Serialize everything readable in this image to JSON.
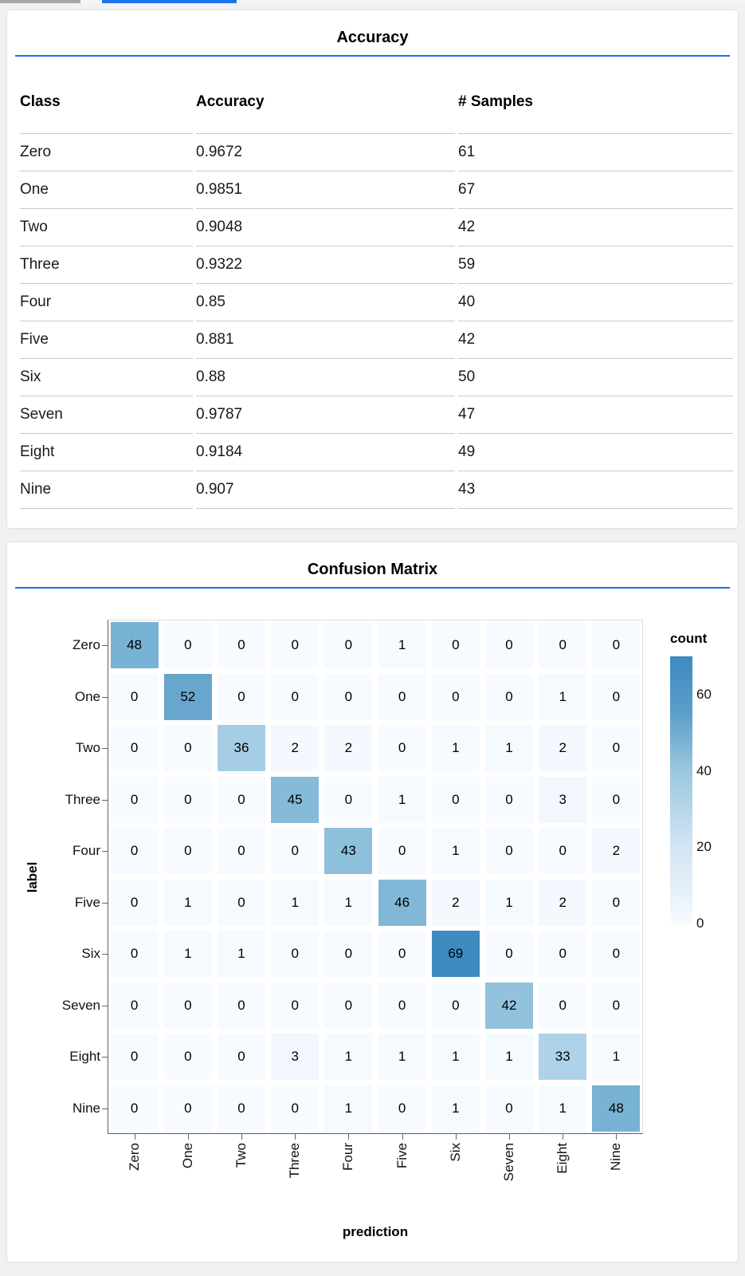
{
  "top_strip": {
    "inactive_tab_color": "#a6a6a6",
    "active_tab_color": "#1a73e8"
  },
  "accuracy_panel": {
    "title": "Accuracy",
    "columns": [
      "Class",
      "Accuracy",
      "# Samples"
    ],
    "rows": [
      {
        "class": "Zero",
        "accuracy": "0.9672",
        "samples": "61"
      },
      {
        "class": "One",
        "accuracy": "0.9851",
        "samples": "67"
      },
      {
        "class": "Two",
        "accuracy": "0.9048",
        "samples": "42"
      },
      {
        "class": "Three",
        "accuracy": "0.9322",
        "samples": "59"
      },
      {
        "class": "Four",
        "accuracy": "0.85",
        "samples": "40"
      },
      {
        "class": "Five",
        "accuracy": "0.881",
        "samples": "42"
      },
      {
        "class": "Six",
        "accuracy": "0.88",
        "samples": "50"
      },
      {
        "class": "Seven",
        "accuracy": "0.9787",
        "samples": "47"
      },
      {
        "class": "Eight",
        "accuracy": "0.9184",
        "samples": "49"
      },
      {
        "class": "Nine",
        "accuracy": "0.907",
        "samples": "43"
      }
    ]
  },
  "confusion_panel": {
    "title": "Confusion Matrix"
  },
  "chart_data": {
    "type": "heatmap",
    "title": "Confusion Matrix",
    "xlabel": "prediction",
    "ylabel": "label",
    "categories": [
      "Zero",
      "One",
      "Two",
      "Three",
      "Four",
      "Five",
      "Six",
      "Seven",
      "Eight",
      "Nine"
    ],
    "matrix": [
      [
        48,
        0,
        0,
        0,
        0,
        1,
        0,
        0,
        0,
        0
      ],
      [
        0,
        52,
        0,
        0,
        0,
        0,
        0,
        0,
        1,
        0
      ],
      [
        0,
        0,
        36,
        2,
        2,
        0,
        1,
        1,
        2,
        0
      ],
      [
        0,
        0,
        0,
        45,
        0,
        1,
        0,
        0,
        3,
        0
      ],
      [
        0,
        0,
        0,
        0,
        43,
        0,
        1,
        0,
        0,
        2
      ],
      [
        0,
        1,
        0,
        1,
        1,
        46,
        2,
        1,
        2,
        0
      ],
      [
        0,
        1,
        1,
        0,
        0,
        0,
        69,
        0,
        0,
        0
      ],
      [
        0,
        0,
        0,
        0,
        0,
        0,
        0,
        42,
        0,
        0
      ],
      [
        0,
        0,
        0,
        3,
        1,
        1,
        1,
        1,
        33,
        1
      ],
      [
        0,
        0,
        0,
        0,
        1,
        0,
        1,
        0,
        1,
        48
      ]
    ],
    "legend": {
      "title": "count",
      "ticks": [
        60,
        40,
        20,
        0
      ],
      "domain": [
        0,
        70
      ]
    },
    "colors": {
      "accent_rule": "#1b6ff2",
      "scale_low": "#f7fbff",
      "scale_high": "#3d8ac0"
    },
    "grid": false,
    "legend_position": "right"
  }
}
